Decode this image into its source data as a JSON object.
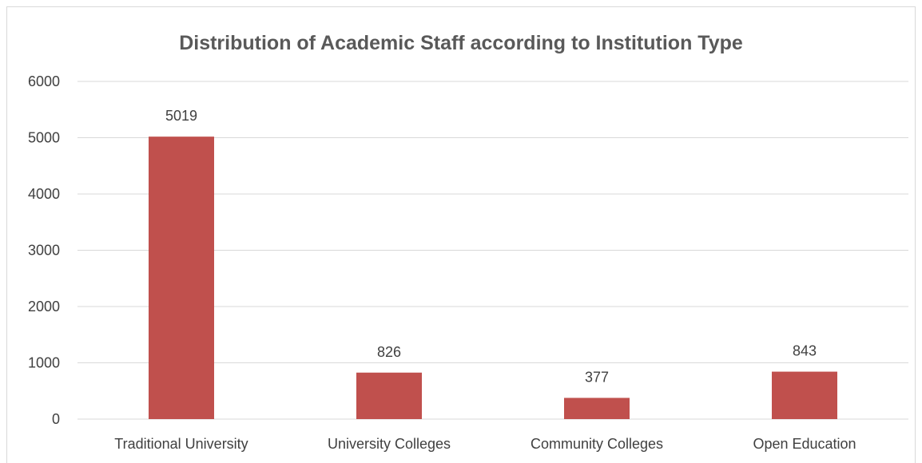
{
  "chart_data": {
    "type": "bar",
    "title": "Distribution of Academic Staff according to Institution Type",
    "categories": [
      "Traditional University",
      "University Colleges",
      "Community Colleges",
      "Open Education"
    ],
    "values": [
      5019,
      826,
      377,
      843
    ],
    "ylim": [
      0,
      6000
    ],
    "yticks": [
      0,
      1000,
      2000,
      3000,
      4000,
      5000,
      6000
    ],
    "xlabel": "",
    "ylabel": "",
    "grid": true,
    "legend": "none",
    "bar_color": "#c0504d",
    "grid_color": "#d9d9d9"
  }
}
